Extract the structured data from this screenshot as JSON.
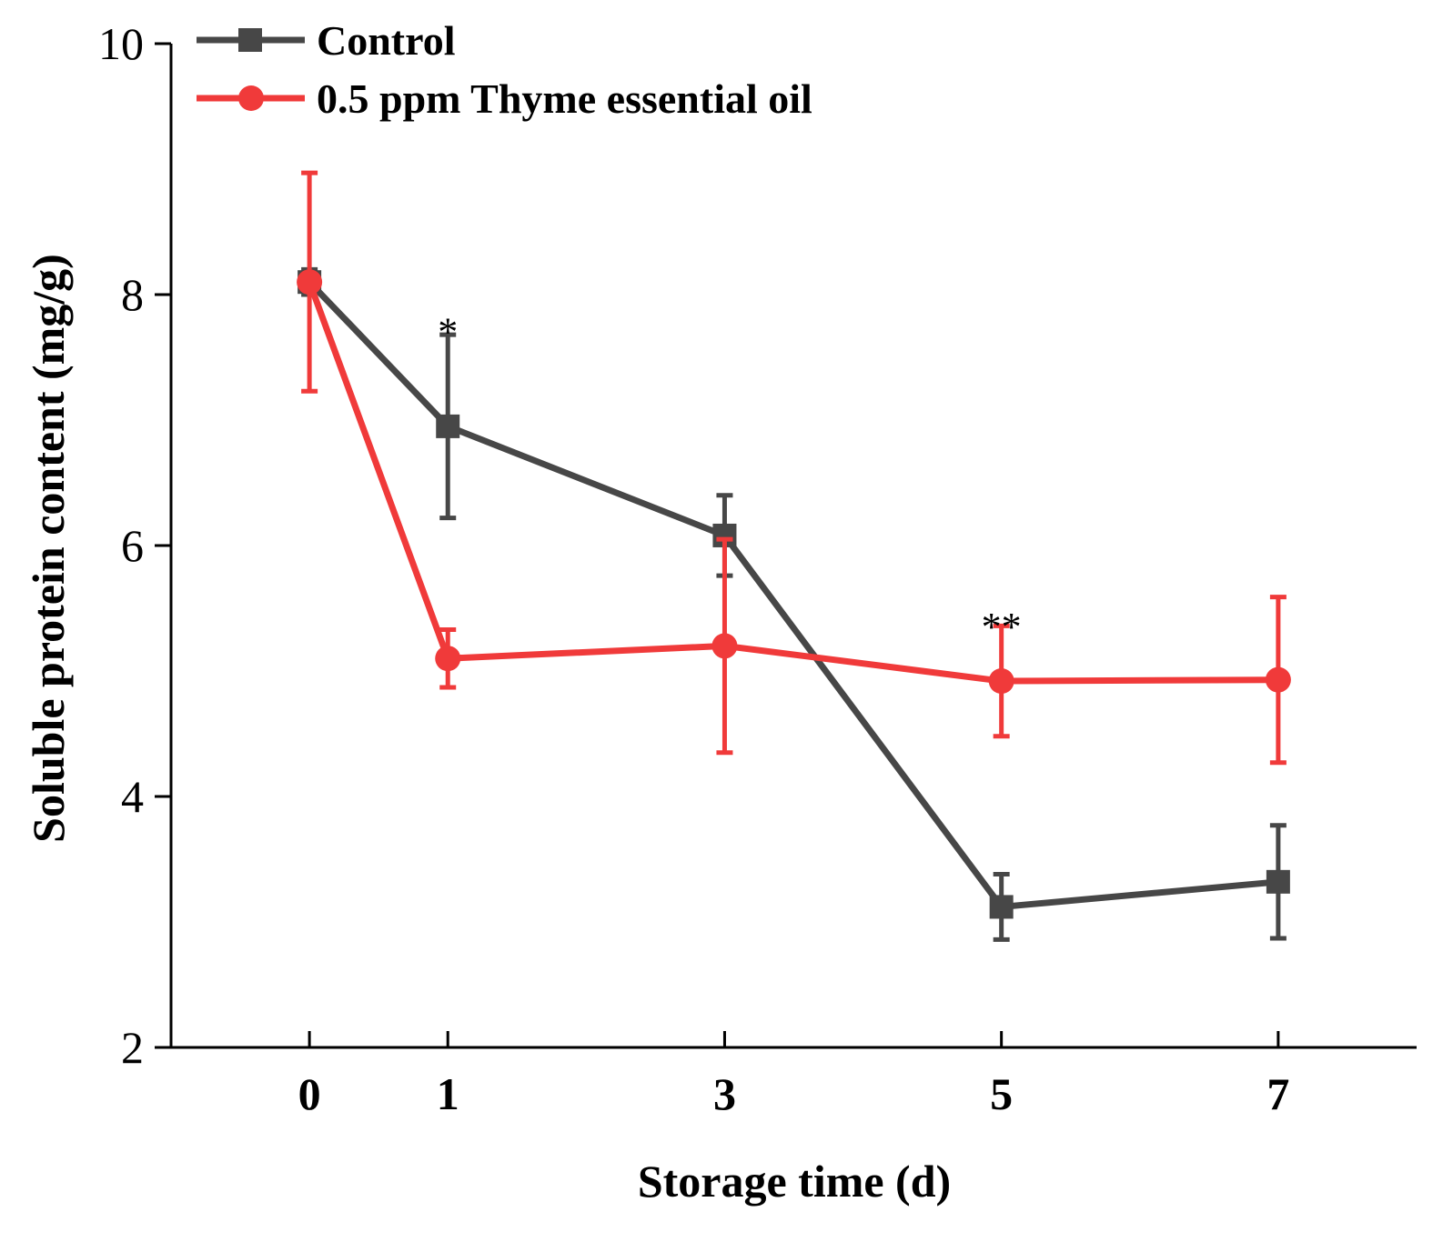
{
  "chart_data": {
    "type": "line",
    "title": "",
    "xlabel": "Storage time (d)",
    "ylabel": "Soluble protein content (mg/g)",
    "x": [
      0,
      1,
      3,
      5,
      7
    ],
    "x_tick_labels": [
      "0",
      "1",
      "3",
      "5",
      "7"
    ],
    "xlim": [
      -1,
      8
    ],
    "ylim": [
      2,
      10
    ],
    "y_ticks": [
      2,
      4,
      6,
      8,
      10
    ],
    "y_tick_labels": [
      "2",
      "4",
      "6",
      "8",
      "10"
    ],
    "grid": false,
    "legend_position": "top-left",
    "series": [
      {
        "name": "Control",
        "color": "#474747",
        "marker": "square",
        "values": [
          8.1,
          6.95,
          6.08,
          3.12,
          3.32
        ],
        "errors": [
          0.1,
          0.73,
          0.32,
          0.26,
          0.45
        ]
      },
      {
        "name": "0.5 ppm Thyme essential oil",
        "color": "#f03a3a",
        "marker": "circle",
        "values": [
          8.1,
          5.1,
          5.2,
          4.92,
          4.93
        ],
        "errors": [
          0.87,
          0.23,
          0.85,
          0.44,
          0.66
        ]
      }
    ],
    "annotations": [
      {
        "text": "*",
        "x": 1,
        "y": 7.8
      },
      {
        "text": "**",
        "x": 5,
        "y": 5.45
      }
    ]
  }
}
